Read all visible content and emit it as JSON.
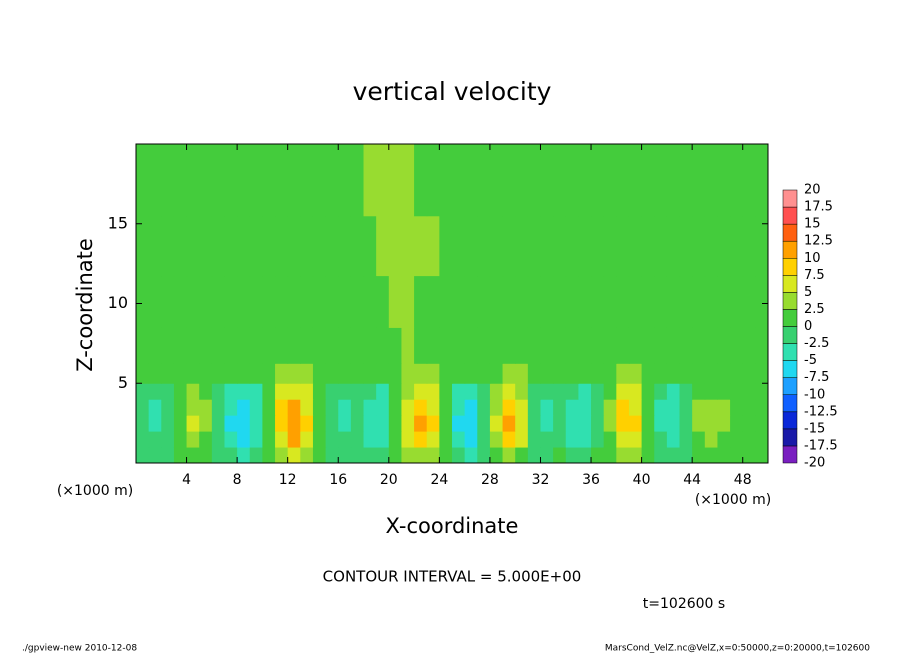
{
  "chart_data": {
    "type": "heatmap",
    "title": "vertical velocity",
    "xlabel": "X-coordinate",
    "ylabel": "Z-coordinate",
    "x_unit": "(×1000 m)",
    "y_unit": "(×1000 m)",
    "contour_note": "CONTOUR INTERVAL = 5.000E+00",
    "time_note": "t=102600 s",
    "footer_left": "./gpview-new  2010-12-08",
    "footer_right": "MarsCond_VelZ.nc@VelZ,x=0:50000,z=0:20000,t=102600",
    "xlim": [
      0,
      50
    ],
    "ylim": [
      0,
      20
    ],
    "xticks": [
      4,
      8,
      12,
      16,
      20,
      24,
      28,
      32,
      36,
      40,
      44,
      48
    ],
    "yticks": [
      5,
      10,
      15
    ],
    "x": [
      0.5,
      1.5,
      2.5,
      3.5,
      4.5,
      5.5,
      6.5,
      7.5,
      8.5,
      9.5,
      10.5,
      11.5,
      12.5,
      13.5,
      14.5,
      15.5,
      16.5,
      17.5,
      18.5,
      19.5,
      20.5,
      21.5,
      22.5,
      23.5,
      24.5,
      25.5,
      26.5,
      27.5,
      28.5,
      29.5,
      30.5,
      31.5,
      32.5,
      33.5,
      34.5,
      35.5,
      36.5,
      37.5,
      38.5,
      39.5,
      40.5,
      41.5,
      42.5,
      43.5,
      44.5,
      45.5,
      46.5,
      47.5,
      48.5,
      49.5
    ],
    "y": [
      0.5,
      1.5,
      2.5,
      3.5,
      4.5,
      5.5,
      7,
      10,
      13.5,
      17.5
    ],
    "z": [
      [
        -1,
        -1,
        -1,
        1,
        2,
        1,
        -1,
        -2,
        -3,
        -2,
        1,
        4,
        5,
        3,
        1,
        -1,
        -1,
        -1,
        -2,
        -2,
        0,
        3,
        4,
        3,
        0,
        -2,
        -3,
        -1,
        2,
        4,
        2,
        -1,
        -1,
        0,
        -2,
        -2,
        0,
        1,
        4,
        3,
        1,
        -1,
        -2,
        -1,
        1,
        2,
        1,
        1,
        0,
        0
      ],
      [
        -2,
        -2,
        -2,
        2,
        4,
        2,
        -2,
        -5,
        -6,
        -4,
        2,
        7,
        10,
        6,
        2,
        -2,
        -2,
        -2,
        -3,
        -4,
        0,
        6,
        8,
        6,
        0,
        -5,
        -6,
        -2,
        4,
        8,
        5,
        -2,
        -2,
        -1,
        -3,
        -4,
        -1,
        2,
        7,
        6,
        2,
        -2,
        -4,
        -2,
        2,
        3,
        2,
        2,
        1,
        0
      ],
      [
        -2,
        -3,
        -2,
        2,
        5,
        3,
        -2,
        -6,
        -7,
        -5,
        2,
        9,
        12,
        8,
        2,
        -2,
        -3,
        -2,
        -4,
        -5,
        0,
        7,
        10,
        8,
        0,
        -6,
        -7,
        -2,
        5,
        10,
        6,
        -2,
        -3,
        -1,
        -4,
        -5,
        -1,
        3,
        9,
        8,
        2,
        -3,
        -5,
        -2,
        3,
        4,
        3,
        2,
        1,
        0
      ],
      [
        -2,
        -3,
        -2,
        2,
        4,
        3,
        -2,
        -5,
        -6,
        -4,
        2,
        8,
        11,
        7,
        2,
        -2,
        -3,
        -2,
        -4,
        -4,
        0,
        6,
        9,
        7,
        0,
        -5,
        -6,
        -2,
        4,
        9,
        5,
        -2,
        -3,
        -1,
        -4,
        -4,
        -1,
        3,
        8,
        7,
        2,
        -3,
        -4,
        -2,
        3,
        4,
        3,
        2,
        1,
        0
      ],
      [
        -1,
        -2,
        -1,
        1,
        3,
        2,
        -1,
        -4,
        -4,
        -3,
        1,
        5,
        7,
        5,
        1,
        -1,
        -2,
        -1,
        -2,
        -3,
        0,
        4,
        6,
        5,
        0,
        -4,
        -4,
        -1,
        3,
        6,
        4,
        -1,
        -2,
        -1,
        -2,
        -3,
        -1,
        2,
        5,
        5,
        1,
        -2,
        -3,
        -1,
        2,
        2,
        2,
        1,
        1,
        0
      ],
      [
        1,
        0,
        1,
        2,
        2,
        2,
        1,
        0,
        0,
        0,
        2,
        3,
        4,
        3,
        2,
        1,
        0,
        1,
        0,
        0,
        1,
        3,
        4,
        3,
        1,
        0,
        0,
        1,
        2,
        4,
        3,
        1,
        0,
        1,
        0,
        0,
        1,
        2,
        3,
        3,
        2,
        0,
        0,
        1,
        2,
        2,
        2,
        1,
        1,
        1
      ],
      [
        1,
        1,
        2,
        1,
        2,
        1,
        1,
        2,
        1,
        0,
        1,
        2,
        2,
        1,
        1,
        2,
        1,
        1,
        2,
        1,
        2,
        3,
        2,
        1,
        1,
        2,
        1,
        0,
        1,
        2,
        2,
        1,
        1,
        2,
        1,
        1,
        2,
        1,
        1,
        0,
        1,
        2,
        1,
        1,
        2,
        1,
        1,
        2,
        1,
        1
      ],
      [
        2,
        1,
        1,
        2,
        1,
        2,
        2,
        1,
        1,
        2,
        2,
        1,
        2,
        2,
        1,
        1,
        2,
        1,
        2,
        2,
        3,
        3,
        2,
        2,
        1,
        2,
        1,
        1,
        2,
        2,
        1,
        2,
        1,
        1,
        2,
        1,
        1,
        2,
        1,
        1,
        2,
        1,
        2,
        2,
        1,
        1,
        2,
        1,
        2,
        1
      ],
      [
        1,
        1,
        2,
        1,
        1,
        2,
        1,
        1,
        2,
        1,
        1,
        2,
        1,
        2,
        1,
        1,
        2,
        2,
        2,
        3,
        3,
        3,
        4,
        3,
        2,
        2,
        2,
        1,
        1,
        2,
        1,
        1,
        2,
        2,
        1,
        1,
        2,
        1,
        1,
        2,
        1,
        1,
        2,
        1,
        1,
        2,
        1,
        1,
        2,
        1
      ],
      [
        1,
        2,
        1,
        1,
        2,
        1,
        1,
        2,
        1,
        1,
        2,
        1,
        1,
        2,
        1,
        1,
        2,
        2,
        3,
        3,
        3,
        3,
        2,
        2,
        2,
        1,
        1,
        2,
        1,
        2,
        1,
        1,
        2,
        1,
        1,
        2,
        1,
        1,
        2,
        1,
        2,
        1,
        1,
        2,
        1,
        1,
        2,
        1,
        1,
        2
      ]
    ],
    "levels": [
      -20,
      -17.5,
      -15,
      -12.5,
      -10,
      -7.5,
      -5,
      -2.5,
      0,
      2.5,
      5,
      7.5,
      10,
      12.5,
      15,
      17.5,
      20
    ],
    "colors": [
      "#7a1fc0",
      "#1a1aa8",
      "#0a28d8",
      "#1060ff",
      "#1ea0ff",
      "#20d8f0",
      "#30e0b0",
      "#38d070",
      "#44cc3c",
      "#98dc30",
      "#d8e820",
      "#ffd000",
      "#ffa000",
      "#ff6010",
      "#ff5050",
      "#ff9090"
    ]
  }
}
